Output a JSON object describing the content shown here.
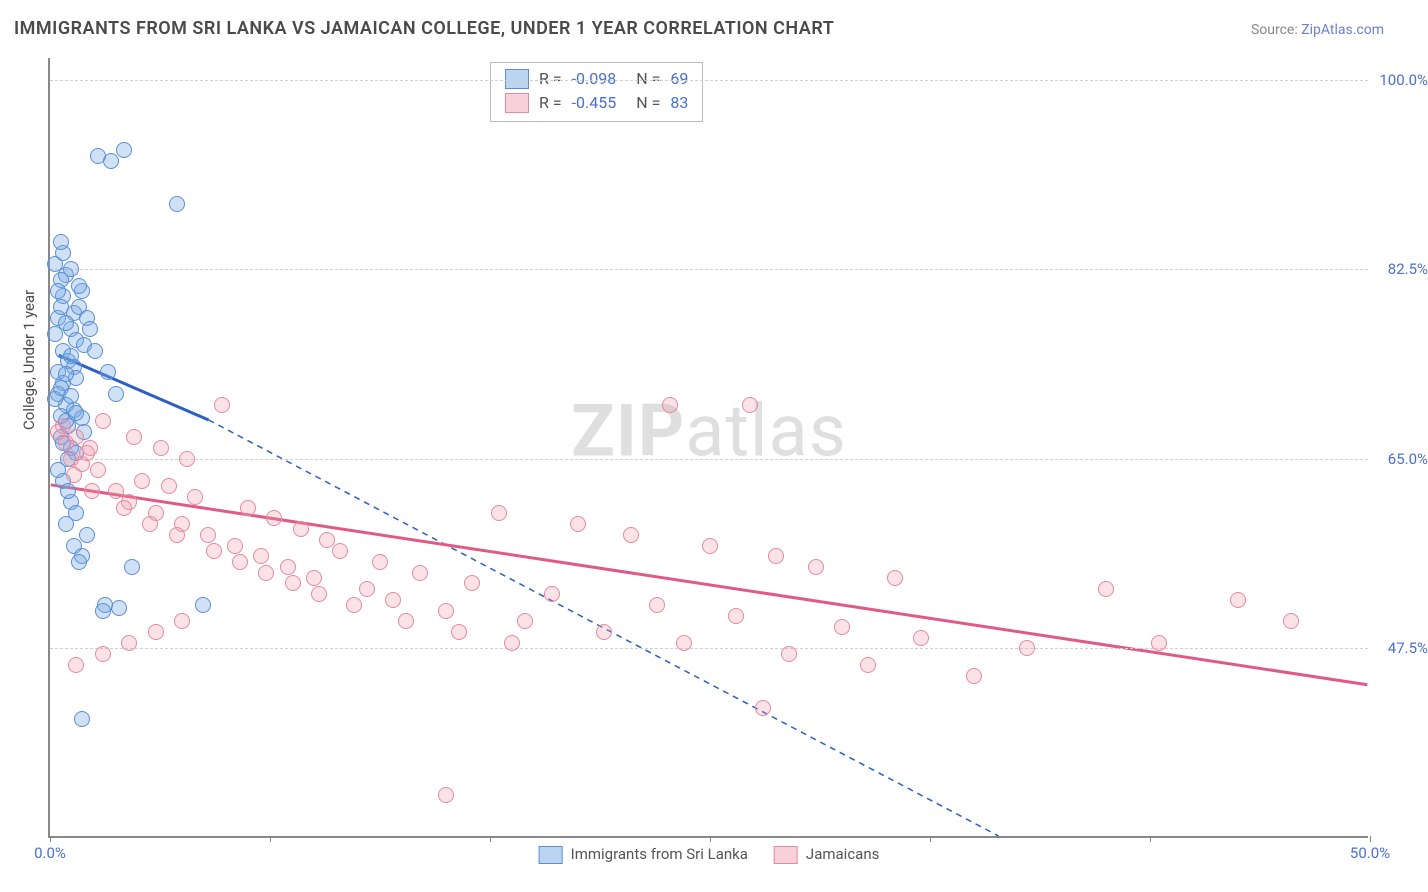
{
  "title": "IMMIGRANTS FROM SRI LANKA VS JAMAICAN COLLEGE, UNDER 1 YEAR CORRELATION CHART",
  "source_prefix": "Source: ",
  "source_name": "ZipAtlas.com",
  "watermark": {
    "bold": "ZIP",
    "light": "atlas"
  },
  "chart": {
    "type": "scatter",
    "y_axis": {
      "label": "College, Under 1 year",
      "min": 30.0,
      "max": 102.0
    },
    "x_axis": {
      "min": 0.0,
      "max": 50.0
    },
    "y_ticks": [
      47.5,
      65.0,
      82.5,
      100.0
    ],
    "y_tick_labels": [
      "47.5%",
      "65.0%",
      "82.5%",
      "100.0%"
    ],
    "x_tick_positions": [
      0,
      8.33,
      16.67,
      25.0,
      33.33,
      41.67,
      50.0
    ],
    "x_tick_labels": {
      "0": "0.0%",
      "50": "50.0%"
    },
    "colors": {
      "blue_fill": "#78aae6",
      "blue_stroke": "#5a8fd4",
      "pink_fill": "#f096aa",
      "pink_stroke": "#e58aa0",
      "blue_line": "#2a5fc4",
      "pink_line": "#e05a85",
      "grid": "#d0d0d0",
      "axis": "#888888",
      "tick_text": "#4a6fd4"
    },
    "point_radius": 8,
    "series": [
      {
        "name": "Immigrants from Sri Lanka",
        "color_key": "blue",
        "R": "-0.098",
        "N": "69",
        "trend": {
          "x1": 0.3,
          "y1": 74.5,
          "x2": 6.0,
          "y2": 68.5,
          "extend_dashed_to_x": 36.0,
          "extend_dashed_to_y": 30.0
        },
        "points": [
          [
            0.3,
            78
          ],
          [
            0.5,
            80
          ],
          [
            0.6,
            82
          ],
          [
            0.4,
            79
          ],
          [
            0.8,
            77
          ],
          [
            1.0,
            76
          ],
          [
            0.5,
            75
          ],
          [
            0.7,
            74
          ],
          [
            0.3,
            73
          ],
          [
            0.9,
            78.5
          ],
          [
            1.2,
            80.5
          ],
          [
            0.4,
            81.5
          ],
          [
            0.6,
            77.5
          ],
          [
            1.1,
            79
          ],
          [
            0.2,
            76.5
          ],
          [
            0.8,
            74.5
          ],
          [
            1.4,
            78
          ],
          [
            0.5,
            72
          ],
          [
            0.3,
            71
          ],
          [
            0.9,
            73.5
          ],
          [
            0.6,
            70
          ],
          [
            1.0,
            72.5
          ],
          [
            0.4,
            69
          ],
          [
            0.7,
            68
          ],
          [
            1.3,
            75.5
          ],
          [
            0.2,
            83
          ],
          [
            0.5,
            84
          ],
          [
            0.8,
            82.5
          ],
          [
            1.1,
            81
          ],
          [
            0.3,
            80.5
          ],
          [
            1.8,
            93
          ],
          [
            2.3,
            92.5
          ],
          [
            2.8,
            93.5
          ],
          [
            4.8,
            88.5
          ],
          [
            0.4,
            85
          ],
          [
            2.1,
            51.5
          ],
          [
            2.0,
            51
          ],
          [
            2.6,
            51.2
          ],
          [
            3.1,
            55
          ],
          [
            5.8,
            51.5
          ],
          [
            0.8,
            61
          ],
          [
            1.0,
            60
          ],
          [
            0.6,
            59
          ],
          [
            0.9,
            57
          ],
          [
            1.2,
            56
          ],
          [
            0.5,
            63
          ],
          [
            0.7,
            62
          ],
          [
            1.4,
            58
          ],
          [
            0.3,
            64
          ],
          [
            1.1,
            55.5
          ],
          [
            0.4,
            67
          ],
          [
            0.8,
            66
          ],
          [
            1.0,
            65.5
          ],
          [
            0.6,
            68.5
          ],
          [
            0.9,
            69.5
          ],
          [
            1.3,
            67.5
          ],
          [
            0.5,
            66.5
          ],
          [
            0.7,
            65
          ],
          [
            1.2,
            68.8
          ],
          [
            0.2,
            70.5
          ],
          [
            0.4,
            71.5
          ],
          [
            0.8,
            70.8
          ],
          [
            1.0,
            69.2
          ],
          [
            0.6,
            72.8
          ],
          [
            1.5,
            77
          ],
          [
            1.7,
            75
          ],
          [
            2.2,
            73
          ],
          [
            2.5,
            71
          ],
          [
            1.2,
            41
          ]
        ]
      },
      {
        "name": "Jamaicans",
        "color_key": "pink",
        "R": "-0.455",
        "N": "83",
        "trend": {
          "x1": 0.0,
          "y1": 62.5,
          "x2": 50.0,
          "y2": 44.0
        },
        "points": [
          [
            0.5,
            68
          ],
          [
            1.0,
            67
          ],
          [
            1.5,
            66
          ],
          [
            0.8,
            65
          ],
          [
            1.2,
            64.5
          ],
          [
            0.6,
            66.5
          ],
          [
            1.4,
            65.5
          ],
          [
            0.3,
            67.5
          ],
          [
            0.9,
            63.5
          ],
          [
            1.8,
            64
          ],
          [
            2.5,
            62
          ],
          [
            3.0,
            61
          ],
          [
            3.5,
            63
          ],
          [
            4.0,
            60
          ],
          [
            4.5,
            62.5
          ],
          [
            5.0,
            59
          ],
          [
            5.5,
            61.5
          ],
          [
            6.0,
            58
          ],
          [
            6.5,
            70
          ],
          [
            7.0,
            57
          ],
          [
            7.5,
            60.5
          ],
          [
            8.0,
            56
          ],
          [
            8.5,
            59.5
          ],
          [
            9.0,
            55
          ],
          [
            9.5,
            58.5
          ],
          [
            10.0,
            54
          ],
          [
            10.5,
            57.5
          ],
          [
            11.0,
            56.5
          ],
          [
            12.0,
            53
          ],
          [
            12.5,
            55.5
          ],
          [
            13.0,
            52
          ],
          [
            14.0,
            54.5
          ],
          [
            15.0,
            51
          ],
          [
            16.0,
            53.5
          ],
          [
            17.0,
            60
          ],
          [
            18.0,
            50
          ],
          [
            19.0,
            52.5
          ],
          [
            20.0,
            59
          ],
          [
            21.0,
            49
          ],
          [
            22.0,
            58
          ],
          [
            23.0,
            51.5
          ],
          [
            24.0,
            48
          ],
          [
            25.0,
            57
          ],
          [
            26.0,
            50.5
          ],
          [
            27.5,
            56
          ],
          [
            27.0,
            42
          ],
          [
            28.0,
            47
          ],
          [
            29.0,
            55
          ],
          [
            30.0,
            49.5
          ],
          [
            31.0,
            46
          ],
          [
            32.0,
            54
          ],
          [
            33.0,
            48.5
          ],
          [
            35.0,
            45
          ],
          [
            37.0,
            47.5
          ],
          [
            40.0,
            53
          ],
          [
            42.0,
            48
          ],
          [
            45.0,
            52
          ],
          [
            47.0,
            50
          ],
          [
            2.0,
            68.5
          ],
          [
            3.2,
            67
          ],
          [
            4.2,
            66
          ],
          [
            5.2,
            65
          ],
          [
            1.6,
            62
          ],
          [
            2.8,
            60.5
          ],
          [
            3.8,
            59
          ],
          [
            4.8,
            58
          ],
          [
            6.2,
            56.5
          ],
          [
            7.2,
            55.5
          ],
          [
            8.2,
            54.5
          ],
          [
            9.2,
            53.5
          ],
          [
            10.2,
            52.5
          ],
          [
            11.5,
            51.5
          ],
          [
            13.5,
            50
          ],
          [
            15.5,
            49
          ],
          [
            17.5,
            48
          ],
          [
            15.0,
            34
          ],
          [
            26.5,
            70
          ],
          [
            23.5,
            70
          ],
          [
            1.0,
            46
          ],
          [
            2.0,
            47
          ],
          [
            3.0,
            48
          ],
          [
            4.0,
            49
          ],
          [
            5.0,
            50
          ]
        ]
      }
    ],
    "legend_bottom": [
      {
        "swatch": "blue",
        "label": "Immigrants from Sri Lanka"
      },
      {
        "swatch": "pink",
        "label": "Jamaicans"
      }
    ]
  }
}
